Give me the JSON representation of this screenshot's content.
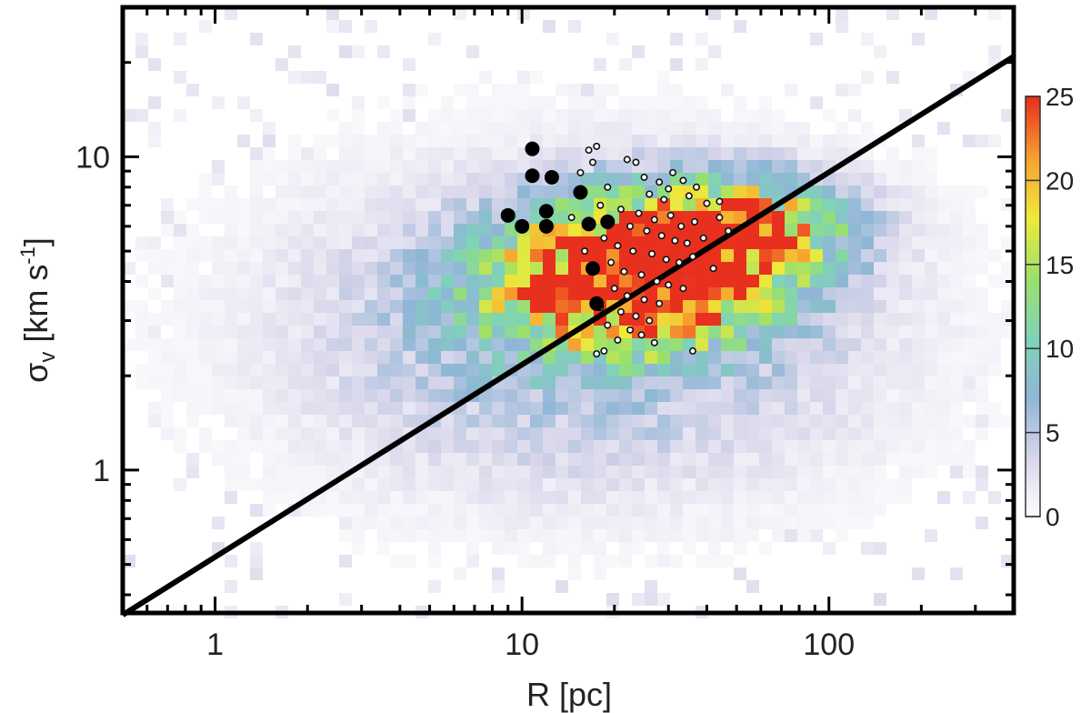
{
  "chart_data": {
    "type": "heatmap",
    "title": "",
    "xlabel": "R [pc]",
    "ylabel_main": "σ",
    "ylabel_sub": "v",
    "ylabel_unit_pre": " [km s",
    "ylabel_unit_sup": "-1",
    "ylabel_unit_post": "]",
    "xscale": "log",
    "yscale": "log",
    "xlim": [
      0.5,
      400
    ],
    "ylim": [
      0.35,
      30
    ],
    "xticks": [
      {
        "value": 1,
        "label": "1"
      },
      {
        "value": 10,
        "label": "10"
      },
      {
        "value": 100,
        "label": "100"
      }
    ],
    "yticks": [
      {
        "value": 1,
        "label": "1"
      },
      {
        "value": 10,
        "label": "10"
      }
    ],
    "grid": false,
    "colorbar": {
      "range": [
        0,
        25
      ],
      "ticks": [
        {
          "value": 0,
          "label": "0"
        },
        {
          "value": 5,
          "label": "5"
        },
        {
          "value": 10,
          "label": "10"
        },
        {
          "value": 15,
          "label": "15"
        },
        {
          "value": 20,
          "label": "20"
        },
        {
          "value": 25,
          "label": "25"
        }
      ],
      "colors": [
        "#ffffff",
        "#d8d6ea",
        "#8fb6d6",
        "#7fd3b8",
        "#9be06a",
        "#eeea3a",
        "#f8a030",
        "#e8301e"
      ]
    },
    "density_peaks": [
      {
        "R": 30,
        "sigma": 5.0,
        "count": 25,
        "spread_R": 0.28,
        "spread_sigma": 0.13
      },
      {
        "R": 20,
        "sigma": 3.6,
        "count": 18,
        "spread_R": 0.3,
        "spread_sigma": 0.13
      },
      {
        "R": 60,
        "sigma": 6.2,
        "count": 12,
        "spread_R": 0.22,
        "spread_sigma": 0.1
      }
    ],
    "density_sparse": {
      "R_range": [
        0.6,
        300
      ],
      "sigma_range": [
        0.5,
        15
      ],
      "count_range": [
        1,
        6
      ]
    },
    "large_points": [
      {
        "R": 10.8,
        "sigma": 10.6
      },
      {
        "R": 10.8,
        "sigma": 8.7
      },
      {
        "R": 12.5,
        "sigma": 8.6
      },
      {
        "R": 15.5,
        "sigma": 7.7
      },
      {
        "R": 12.0,
        "sigma": 6.7
      },
      {
        "R": 9.0,
        "sigma": 6.5
      },
      {
        "R": 10.0,
        "sigma": 6.0
      },
      {
        "R": 12.0,
        "sigma": 6.0
      },
      {
        "R": 16.5,
        "sigma": 6.1
      },
      {
        "R": 19.0,
        "sigma": 6.2
      },
      {
        "R": 17.0,
        "sigma": 4.4
      },
      {
        "R": 17.5,
        "sigma": 3.4
      }
    ],
    "small_points": [
      {
        "R": 16.5,
        "sigma": 10.5
      },
      {
        "R": 17.5,
        "sigma": 10.8
      },
      {
        "R": 17.0,
        "sigma": 9.6
      },
      {
        "R": 22.0,
        "sigma": 9.8
      },
      {
        "R": 23.5,
        "sigma": 9.6
      },
      {
        "R": 25.0,
        "sigma": 8.6
      },
      {
        "R": 28.0,
        "sigma": 8.3
      },
      {
        "R": 31.0,
        "sigma": 8.9
      },
      {
        "R": 33.5,
        "sigma": 8.4
      },
      {
        "R": 37.0,
        "sigma": 8.0
      },
      {
        "R": 19.0,
        "sigma": 8.0
      },
      {
        "R": 26.0,
        "sigma": 7.6
      },
      {
        "R": 29.0,
        "sigma": 7.3
      },
      {
        "R": 35.0,
        "sigma": 7.5
      },
      {
        "R": 40.0,
        "sigma": 7.1
      },
      {
        "R": 44.0,
        "sigma": 7.2
      },
      {
        "R": 18.0,
        "sigma": 7.0
      },
      {
        "R": 21.0,
        "sigma": 6.8
      },
      {
        "R": 24.0,
        "sigma": 6.6
      },
      {
        "R": 27.0,
        "sigma": 6.3
      },
      {
        "R": 30.5,
        "sigma": 6.5
      },
      {
        "R": 33.0,
        "sigma": 6.0
      },
      {
        "R": 36.5,
        "sigma": 6.2
      },
      {
        "R": 14.5,
        "sigma": 6.4
      },
      {
        "R": 22.5,
        "sigma": 6.0
      },
      {
        "R": 25.5,
        "sigma": 5.8
      },
      {
        "R": 28.5,
        "sigma": 5.6
      },
      {
        "R": 31.5,
        "sigma": 5.4
      },
      {
        "R": 34.5,
        "sigma": 5.3
      },
      {
        "R": 39.0,
        "sigma": 5.5
      },
      {
        "R": 18.5,
        "sigma": 5.5
      },
      {
        "R": 20.5,
        "sigma": 5.2
      },
      {
        "R": 23.0,
        "sigma": 5.0
      },
      {
        "R": 26.5,
        "sigma": 4.9
      },
      {
        "R": 29.5,
        "sigma": 4.7
      },
      {
        "R": 32.5,
        "sigma": 4.6
      },
      {
        "R": 36.0,
        "sigma": 4.8
      },
      {
        "R": 42.0,
        "sigma": 4.4
      },
      {
        "R": 19.5,
        "sigma": 4.6
      },
      {
        "R": 21.5,
        "sigma": 4.3
      },
      {
        "R": 24.5,
        "sigma": 4.2
      },
      {
        "R": 27.5,
        "sigma": 4.0
      },
      {
        "R": 30.0,
        "sigma": 3.9
      },
      {
        "R": 33.5,
        "sigma": 3.8
      },
      {
        "R": 20.0,
        "sigma": 3.8
      },
      {
        "R": 22.0,
        "sigma": 3.6
      },
      {
        "R": 25.0,
        "sigma": 3.5
      },
      {
        "R": 28.0,
        "sigma": 3.4
      },
      {
        "R": 18.0,
        "sigma": 3.3
      },
      {
        "R": 21.0,
        "sigma": 3.2
      },
      {
        "R": 23.5,
        "sigma": 3.1
      },
      {
        "R": 26.0,
        "sigma": 3.0
      },
      {
        "R": 19.0,
        "sigma": 2.9
      },
      {
        "R": 22.5,
        "sigma": 2.8
      },
      {
        "R": 24.5,
        "sigma": 2.7
      },
      {
        "R": 27.0,
        "sigma": 2.55
      },
      {
        "R": 20.5,
        "sigma": 2.6
      },
      {
        "R": 18.5,
        "sigma": 2.4
      },
      {
        "R": 17.5,
        "sigma": 2.35
      },
      {
        "R": 36.0,
        "sigma": 2.4
      },
      {
        "R": 44.0,
        "sigma": 6.4
      },
      {
        "R": 47.0,
        "sigma": 5.8
      },
      {
        "R": 30.0,
        "sigma": 7.9
      },
      {
        "R": 16.0,
        "sigma": 5.0
      },
      {
        "R": 15.5,
        "sigma": 8.9
      }
    ],
    "fit_line": {
      "points": [
        {
          "R": 0.5,
          "sigma": 0.345
        },
        {
          "R": 400,
          "sigma": 20.9
        }
      ]
    }
  }
}
